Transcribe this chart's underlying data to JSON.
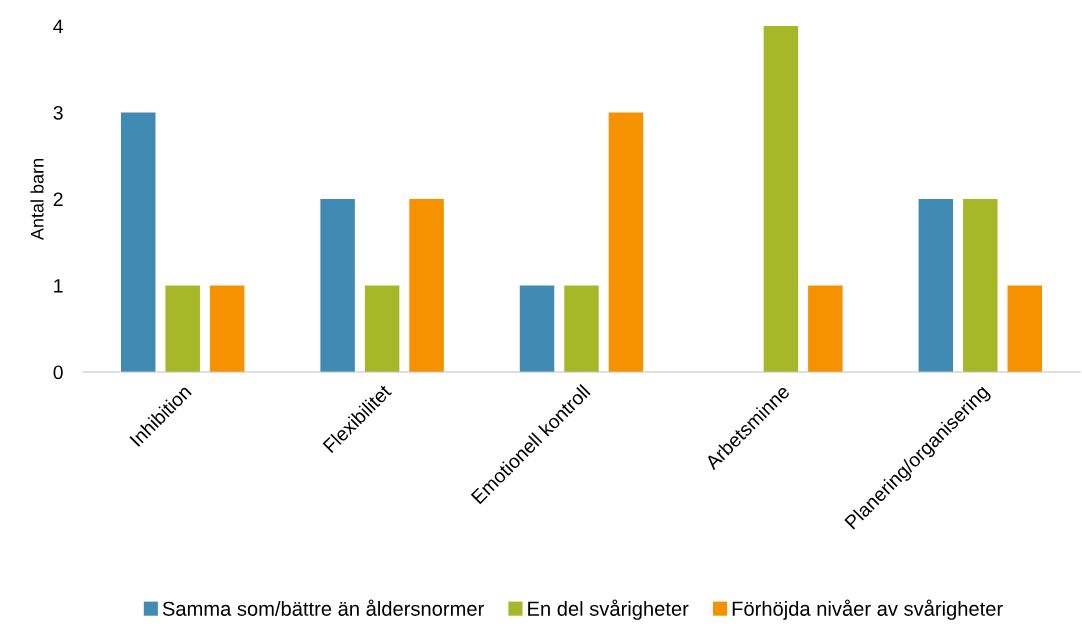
{
  "chart_data": {
    "type": "bar",
    "ylabel": "Antal barn",
    "categories": [
      "Inhibition",
      "Flexibilitet",
      "Emotionell kontroll",
      "Arbetsminne",
      "Planering/organisering"
    ],
    "series": [
      {
        "name": "Samma som/bättre än åldersnormer",
        "color": "#418ab3",
        "values": [
          3,
          2,
          1,
          0,
          2
        ]
      },
      {
        "name": "En del svårigheter",
        "color": "#a6b727",
        "values": [
          1,
          1,
          1,
          4,
          2
        ]
      },
      {
        "name": "Förhöjda nivåer av svårigheter",
        "color": "#f69200",
        "values": [
          1,
          2,
          3,
          1,
          1
        ]
      }
    ],
    "ylim": [
      0,
      4
    ],
    "yticks": [
      0,
      1,
      2,
      3,
      4
    ],
    "grid": false,
    "legend": "bottom"
  }
}
